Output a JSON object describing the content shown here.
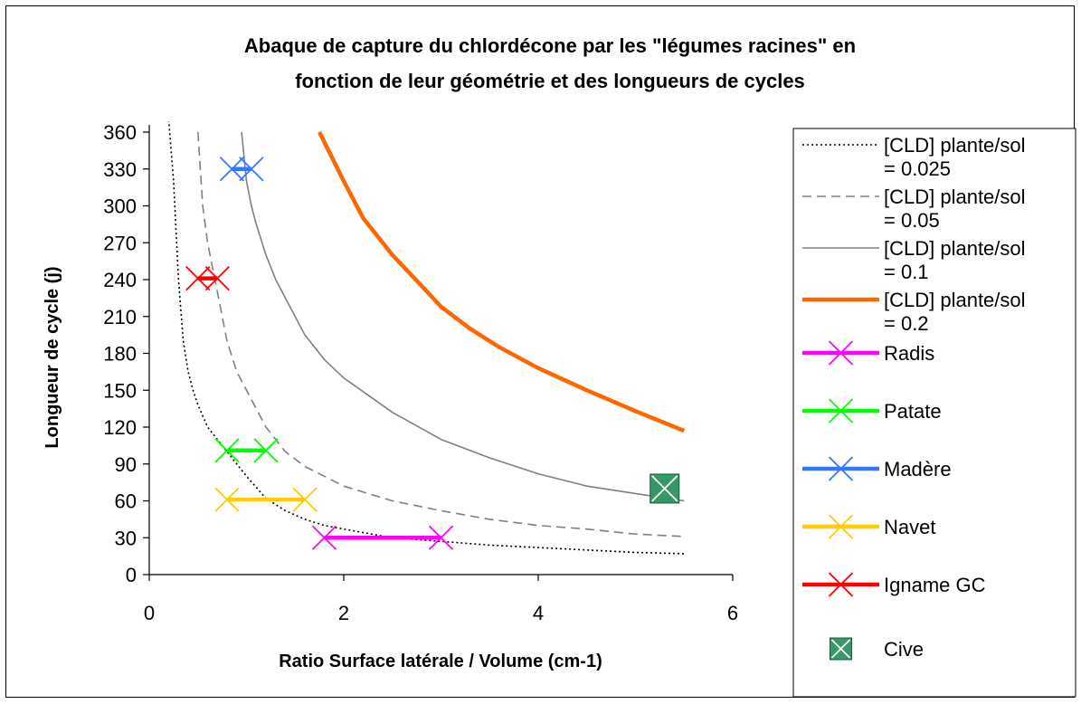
{
  "chart_data": {
    "type": "line",
    "title_line1": "Abaque de capture du chlordécone par les \"légumes racines\" en",
    "title_line2": "fonction de leur géométrie et des longueurs de cycles",
    "xlabel": "Ratio Surface latérale / Volume  (cm-1)",
    "ylabel": "Longueur de cycle  (j)",
    "xlim": [
      0,
      6
    ],
    "ylim": [
      0,
      360
    ],
    "xticks": [
      "0",
      "2",
      "4",
      "6"
    ],
    "yticks": [
      "0",
      "30",
      "60",
      "90",
      "120",
      "150",
      "180",
      "210",
      "240",
      "270",
      "300",
      "330",
      "360"
    ],
    "grid": false,
    "legend_position": "right",
    "curves": [
      {
        "legend_line1": "[CLD] plante/sol",
        "legend_line2": "= 0.025",
        "color": "#000000",
        "style": "dotted",
        "points": [
          [
            0.2,
            370
          ],
          [
            0.25,
            320
          ],
          [
            0.3,
            240
          ],
          [
            0.35,
            190
          ],
          [
            0.4,
            165
          ],
          [
            0.45,
            150
          ],
          [
            0.5,
            138
          ],
          [
            0.6,
            120
          ],
          [
            0.7,
            110
          ],
          [
            0.8,
            100
          ],
          [
            1.0,
            80
          ],
          [
            1.2,
            62
          ],
          [
            1.4,
            52
          ],
          [
            1.6,
            45
          ],
          [
            1.8,
            40
          ],
          [
            2.0,
            37
          ],
          [
            2.5,
            30
          ],
          [
            3.0,
            27
          ],
          [
            3.5,
            24
          ],
          [
            4.0,
            22
          ],
          [
            4.5,
            20
          ],
          [
            5.0,
            18
          ],
          [
            5.5,
            17
          ]
        ]
      },
      {
        "legend_line1": "[CLD] plante/sol",
        "legend_line2": "= 0.05",
        "color": "#808080",
        "style": "dashed",
        "points": [
          [
            0.5,
            360
          ],
          [
            0.55,
            300
          ],
          [
            0.6,
            270
          ],
          [
            0.7,
            230
          ],
          [
            0.8,
            190
          ],
          [
            0.9,
            165
          ],
          [
            1.0,
            150
          ],
          [
            1.2,
            120
          ],
          [
            1.4,
            100
          ],
          [
            1.6,
            88
          ],
          [
            1.8,
            80
          ],
          [
            2.0,
            72
          ],
          [
            2.5,
            60
          ],
          [
            3.0,
            52
          ],
          [
            3.5,
            45
          ],
          [
            4.0,
            40
          ],
          [
            4.5,
            37
          ],
          [
            5.0,
            33
          ],
          [
            5.5,
            31
          ]
        ]
      },
      {
        "legend_line1": "[CLD] plante/sol",
        "legend_line2": "= 0.1",
        "color": "#808080",
        "style": "solid",
        "points": [
          [
            0.95,
            360
          ],
          [
            1.0,
            320
          ],
          [
            1.05,
            300
          ],
          [
            1.1,
            285
          ],
          [
            1.2,
            260
          ],
          [
            1.3,
            240
          ],
          [
            1.4,
            225
          ],
          [
            1.6,
            195
          ],
          [
            1.8,
            175
          ],
          [
            2.0,
            160
          ],
          [
            2.5,
            132
          ],
          [
            3.0,
            110
          ],
          [
            3.5,
            95
          ],
          [
            4.0,
            82
          ],
          [
            4.5,
            72
          ],
          [
            5.0,
            66
          ],
          [
            5.5,
            60
          ]
        ]
      },
      {
        "legend_line1": "[CLD] plante/sol",
        "legend_line2": "= 0.2",
        "color": "#ff6600",
        "style": "thick",
        "points": [
          [
            1.75,
            360
          ],
          [
            2.0,
            320
          ],
          [
            2.2,
            290
          ],
          [
            2.5,
            260
          ],
          [
            2.8,
            235
          ],
          [
            3.0,
            218
          ],
          [
            3.3,
            200
          ],
          [
            3.6,
            185
          ],
          [
            4.0,
            168
          ],
          [
            4.5,
            150
          ],
          [
            5.0,
            133
          ],
          [
            5.5,
            117
          ]
        ]
      }
    ],
    "ranges": [
      {
        "legend": "Radis",
        "color": "#ff00ff",
        "x": [
          1.8,
          3.0
        ],
        "y": 30
      },
      {
        "legend": "Patate",
        "color": "#00ff00",
        "x": [
          0.8,
          1.2
        ],
        "y": 101
      },
      {
        "legend": "Madère",
        "color": "#3377ff",
        "x": [
          0.85,
          1.05
        ],
        "y": 330
      },
      {
        "legend": "Navet",
        "color": "#ffcc00",
        "x": [
          0.8,
          1.6
        ],
        "y": 61
      },
      {
        "legend": "Igname GC",
        "color": "#ff0000",
        "x": [
          0.5,
          0.7
        ],
        "y": 241
      }
    ],
    "point": {
      "legend": "Cive",
      "color": "#339966",
      "x": 5.3,
      "y": 70
    }
  }
}
